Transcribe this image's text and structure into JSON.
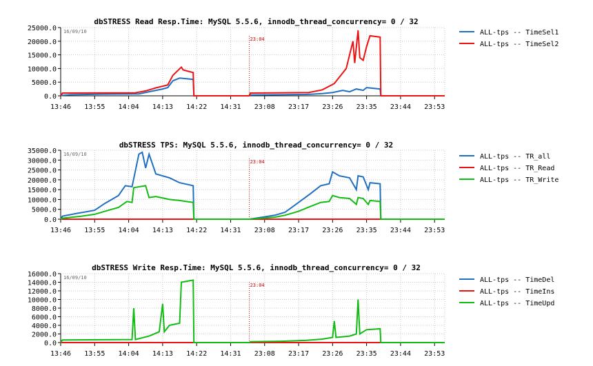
{
  "colors": {
    "blue": "#1f6fc0",
    "red": "#ee1111",
    "green": "#11bb11",
    "marker": "#cc0000",
    "grid": "#c8c8c8"
  },
  "chart_data": [
    {
      "type": "line",
      "title": "dbSTRESS Read Resp.Time: MySQL 5.5.6, innodb_thread_concurrency= 0 / 32",
      "date_label": "16/09/10",
      "marker_label": "23:04",
      "x_ticks": [
        "13:46",
        "13:55",
        "14:04",
        "14:13",
        "14:22",
        "14:31",
        "23:08",
        "23:17",
        "23:26",
        "23:35",
        "23:44",
        "23:53"
      ],
      "y_ticks": [
        "0.0",
        "5000.0",
        "10000.0",
        "15000.0",
        "20000.0",
        "25000.0"
      ],
      "ylim": [
        0,
        25000
      ],
      "xlim": [
        0,
        11.3
      ],
      "marker_x": 5.55,
      "legend": [
        {
          "label": "ALL-tps -- TimeSel1",
          "color": "#1f6fc0"
        },
        {
          "label": "ALL-tps -- TimeSel2",
          "color": "#ee1111"
        }
      ],
      "series": [
        {
          "name": "ALL-tps -- TimeSel1",
          "color": "#1f6fc0",
          "points": [
            [
              0,
              0
            ],
            [
              0.05,
              200
            ],
            [
              0.3,
              400
            ],
            [
              1.2,
              600
            ],
            [
              2.3,
              700
            ],
            [
              2.6,
              1500
            ],
            [
              3,
              2500
            ],
            [
              3.15,
              3000
            ],
            [
              3.3,
              5500
            ],
            [
              3.5,
              6500
            ],
            [
              3.9,
              6000
            ],
            [
              3.92,
              0
            ],
            [
              5.55,
              0
            ],
            [
              5.58,
              300
            ],
            [
              6.5,
              400
            ],
            [
              7.2,
              500
            ],
            [
              7.4,
              600
            ],
            [
              7.7,
              800
            ],
            [
              8,
              1200
            ],
            [
              8.3,
              2000
            ],
            [
              8.5,
              1500
            ],
            [
              8.7,
              2500
            ],
            [
              8.9,
              2000
            ],
            [
              9,
              3000
            ],
            [
              9.4,
              2500
            ],
            [
              9.42,
              0
            ],
            [
              11.3,
              0
            ]
          ]
        },
        {
          "name": "ALL-tps -- TimeSel2",
          "color": "#ee1111",
          "points": [
            [
              0,
              0
            ],
            [
              0.05,
              1000
            ],
            [
              2.2,
              1100
            ],
            [
              2.5,
              1800
            ],
            [
              2.8,
              2900
            ],
            [
              3.15,
              4000
            ],
            [
              3.3,
              7500
            ],
            [
              3.55,
              10500
            ],
            [
              3.6,
              9500
            ],
            [
              3.75,
              9000
            ],
            [
              3.9,
              8500
            ],
            [
              3.92,
              0
            ],
            [
              5.55,
              0
            ],
            [
              5.58,
              1000
            ],
            [
              7.3,
              1200
            ],
            [
              7.7,
              2200
            ],
            [
              8.05,
              4500
            ],
            [
              8.4,
              10000
            ],
            [
              8.6,
              20000
            ],
            [
              8.65,
              12000
            ],
            [
              8.75,
              24000
            ],
            [
              8.8,
              14000
            ],
            [
              8.9,
              13000
            ],
            [
              9,
              18000
            ],
            [
              9.1,
              22000
            ],
            [
              9.4,
              21500
            ],
            [
              9.42,
              0
            ],
            [
              11.3,
              0
            ]
          ]
        }
      ]
    },
    {
      "type": "line",
      "title": "dbSTRESS TPS: MySQL 5.5.6, innodb_thread_concurrency= 0 / 32",
      "date_label": "16/09/10",
      "marker_label": "23:04",
      "x_ticks": [
        "13:46",
        "13:55",
        "14:04",
        "14:13",
        "14:22",
        "14:31",
        "23:08",
        "23:17",
        "23:26",
        "23:35",
        "23:44",
        "23:53"
      ],
      "y_ticks": [
        "0.0",
        "5000.0",
        "10000.0",
        "15000.0",
        "20000.0",
        "25000.0",
        "30000.0",
        "35000.0"
      ],
      "ylim": [
        0,
        35000
      ],
      "xlim": [
        0,
        11.3
      ],
      "marker_x": 5.55,
      "legend": [
        {
          "label": "ALL-tps -- TR_all",
          "color": "#1f6fc0"
        },
        {
          "label": "ALL-tps -- TR_Read",
          "color": "#ee1111"
        },
        {
          "label": "ALL-tps -- TR_Write",
          "color": "#11bb11"
        }
      ],
      "series": [
        {
          "name": "ALL-tps -- TR_all",
          "color": "#1f6fc0",
          "points": [
            [
              0,
              0
            ],
            [
              0.05,
              1500
            ],
            [
              0.5,
              3000
            ],
            [
              1,
              4500
            ],
            [
              1.3,
              8000
            ],
            [
              1.7,
              12000
            ],
            [
              1.9,
              17000
            ],
            [
              2.1,
              16500
            ],
            [
              2.3,
              33000
            ],
            [
              2.4,
              34000
            ],
            [
              2.5,
              26000
            ],
            [
              2.6,
              33000
            ],
            [
              2.8,
              23000
            ],
            [
              3.2,
              21000
            ],
            [
              3.5,
              18500
            ],
            [
              3.9,
              17000
            ],
            [
              3.92,
              0
            ],
            [
              5.55,
              0
            ],
            [
              6.3,
              2000
            ],
            [
              6.6,
              3500
            ],
            [
              7,
              8500
            ],
            [
              7.35,
              13000
            ],
            [
              7.65,
              17000
            ],
            [
              7.9,
              18000
            ],
            [
              8,
              24000
            ],
            [
              8.2,
              22000
            ],
            [
              8.5,
              21000
            ],
            [
              8.7,
              15000
            ],
            [
              8.75,
              22000
            ],
            [
              8.9,
              21500
            ],
            [
              9.05,
              15000
            ],
            [
              9.1,
              18500
            ],
            [
              9.4,
              18000
            ],
            [
              9.42,
              0
            ],
            [
              11.3,
              0
            ]
          ]
        },
        {
          "name": "ALL-tps -- TR_Read",
          "color": "#ee1111",
          "points": [
            [
              0,
              0
            ],
            [
              11.3,
              0
            ]
          ]
        },
        {
          "name": "ALL-tps -- TR_Write",
          "color": "#11bb11",
          "points": [
            [
              0,
              0
            ],
            [
              0.05,
              500
            ],
            [
              0.6,
              1500
            ],
            [
              1,
              2500
            ],
            [
              1.3,
              4000
            ],
            [
              1.7,
              6000
            ],
            [
              1.95,
              9000
            ],
            [
              2.1,
              8500
            ],
            [
              2.15,
              16000
            ],
            [
              2.5,
              17000
            ],
            [
              2.6,
              11000
            ],
            [
              2.8,
              11500
            ],
            [
              3.2,
              10000
            ],
            [
              3.5,
              9500
            ],
            [
              3.9,
              8500
            ],
            [
              3.92,
              0
            ],
            [
              5.55,
              0
            ],
            [
              6.3,
              1000
            ],
            [
              6.6,
              2000
            ],
            [
              7,
              4000
            ],
            [
              7.35,
              6500
            ],
            [
              7.65,
              8500
            ],
            [
              7.9,
              9000
            ],
            [
              8,
              12000
            ],
            [
              8.2,
              11000
            ],
            [
              8.5,
              10500
            ],
            [
              8.7,
              7500
            ],
            [
              8.75,
              11000
            ],
            [
              8.9,
              10500
            ],
            [
              9.05,
              7500
            ],
            [
              9.1,
              9500
            ],
            [
              9.4,
              9000
            ],
            [
              9.42,
              0
            ],
            [
              11.3,
              0
            ]
          ]
        }
      ]
    },
    {
      "type": "line",
      "title": "dbSTRESS Write Resp.Time: MySQL 5.5.6, innodb_thread_concurrency= 0 / 32",
      "date_label": "16/09/10",
      "marker_label": "23:04",
      "x_ticks": [
        "13:46",
        "13:55",
        "14:04",
        "14:13",
        "14:22",
        "14:31",
        "23:08",
        "23:17",
        "23:26",
        "23:35",
        "23:44",
        "23:53"
      ],
      "y_ticks": [
        "0.0",
        "2000.0",
        "4000.0",
        "6000.0",
        "8000.0",
        "10000.0",
        "12000.0",
        "14000.0",
        "16000.0"
      ],
      "ylim": [
        0,
        16000
      ],
      "xlim": [
        0,
        11.3
      ],
      "marker_x": 5.55,
      "legend": [
        {
          "label": "ALL-tps -- TimeDel",
          "color": "#1f6fc0"
        },
        {
          "label": "ALL-tps -- TimeIns",
          "color": "#ee1111"
        },
        {
          "label": "ALL-tps -- TimeUpd",
          "color": "#11bb11"
        }
      ],
      "series": [
        {
          "name": "ALL-tps -- TimeDel",
          "color": "#1f6fc0",
          "points": [
            [
              0,
              0
            ],
            [
              11.3,
              0
            ]
          ]
        },
        {
          "name": "ALL-tps -- TimeIns",
          "color": "#ee1111",
          "points": [
            [
              0,
              0
            ],
            [
              11.3,
              0
            ]
          ]
        },
        {
          "name": "ALL-tps -- TimeUpd",
          "color": "#11bb11",
          "points": [
            [
              0,
              0
            ],
            [
              0.05,
              600
            ],
            [
              2.1,
              700
            ],
            [
              2.15,
              8000
            ],
            [
              2.2,
              700
            ],
            [
              2.6,
              1500
            ],
            [
              2.9,
              2500
            ],
            [
              3.0,
              9000
            ],
            [
              3.05,
              2500
            ],
            [
              3.2,
              4000
            ],
            [
              3.5,
              4500
            ],
            [
              3.55,
              14000
            ],
            [
              3.9,
              14500
            ],
            [
              3.92,
              0
            ],
            [
              5.55,
              0
            ],
            [
              5.58,
              200
            ],
            [
              6.5,
              300
            ],
            [
              7.2,
              500
            ],
            [
              7.7,
              800
            ],
            [
              8.0,
              1200
            ],
            [
              8.05,
              5000
            ],
            [
              8.1,
              1200
            ],
            [
              8.5,
              1500
            ],
            [
              8.7,
              2000
            ],
            [
              8.75,
              10000
            ],
            [
              8.8,
              2000
            ],
            [
              9,
              3000
            ],
            [
              9.4,
              3200
            ],
            [
              9.42,
              0
            ],
            [
              11.3,
              0
            ]
          ]
        }
      ]
    }
  ]
}
